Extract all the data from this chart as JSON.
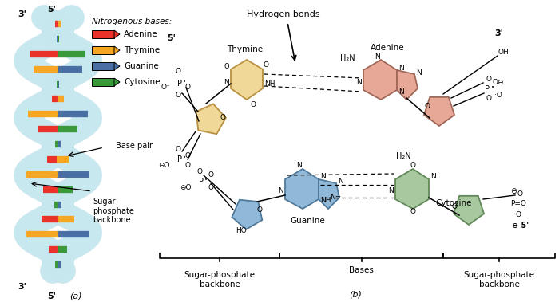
{
  "background_color": "#ffffff",
  "fig_width": 7.0,
  "fig_height": 3.79,
  "dpi": 100,
  "panel_a": {
    "label": "(a)",
    "helix_fill": "#c8e8f0",
    "helix_stroke": "#7bbfd4",
    "adenine_color": "#e8322a",
    "thymine_color": "#f5a623",
    "guanine_color": "#4a6fa5",
    "cytosine_color": "#3a9a3a",
    "legend_title": "Nitrogenous bases:",
    "legend_items": [
      {
        "name": "Adenine",
        "color": "#e8322a"
      },
      {
        "name": "Thymine",
        "color": "#f5a623"
      },
      {
        "name": "Guanine",
        "color": "#4a6fa5"
      },
      {
        "name": "Cytosine",
        "color": "#3a9a3a"
      }
    ]
  },
  "panel_b": {
    "label": "(b)",
    "thymine_fill": "#f0d898",
    "thymine_edge": "#b89040",
    "adenine_fill": "#e8a898",
    "adenine_edge": "#a06858",
    "guanine_fill": "#90b8d8",
    "guanine_edge": "#507898",
    "cytosine_fill": "#a8c8a0",
    "cytosine_edge": "#608858"
  }
}
